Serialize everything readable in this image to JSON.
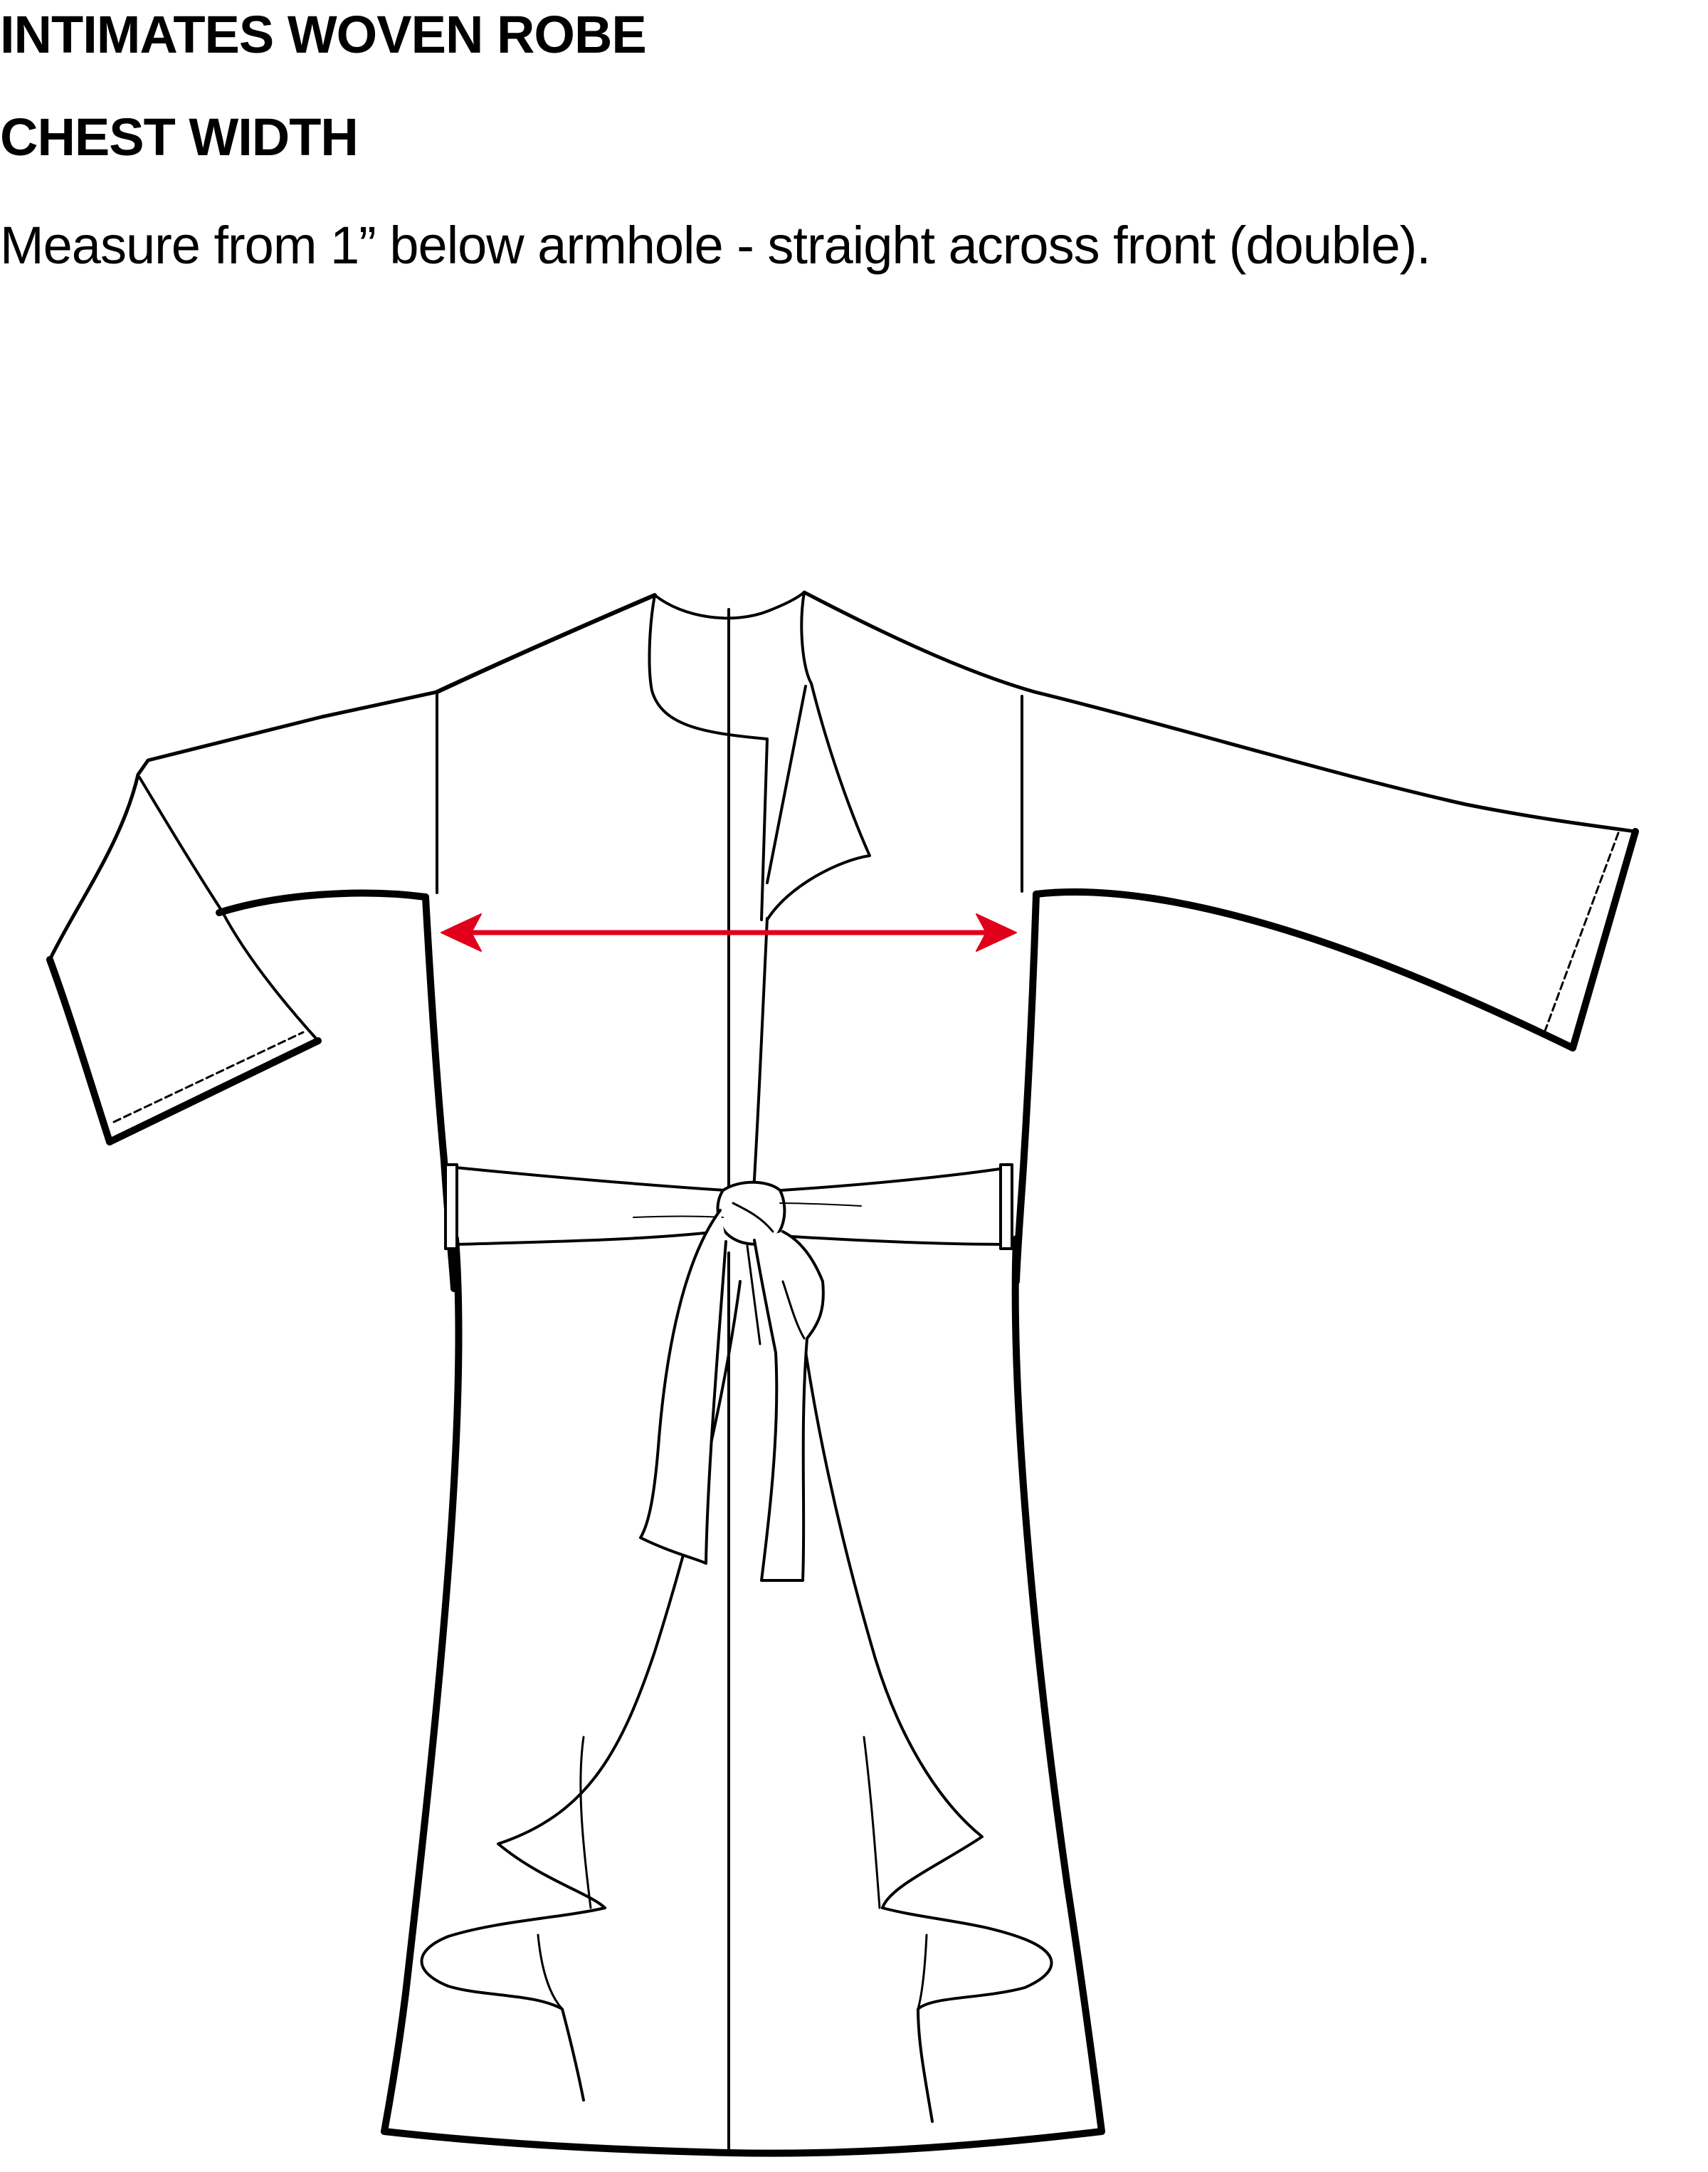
{
  "header": {
    "title": "INTIMATES WOVEN ROBE",
    "measurement_name": "CHEST WIDTH",
    "instruction": "Measure from 1” below armhole - straight across front (double)."
  },
  "figure": {
    "garment": "robe",
    "measurement_arrow_color": "#e0001b",
    "line_color": "#000000"
  }
}
